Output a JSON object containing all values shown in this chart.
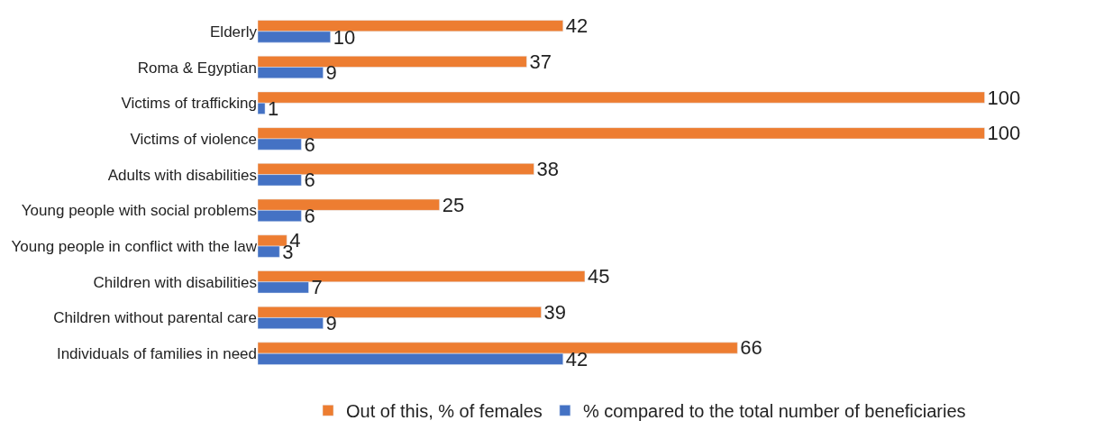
{
  "chart_data": {
    "type": "bar",
    "orientation": "horizontal",
    "categories": [
      "Elderly",
      "Roma & Egyptian",
      "Victims of trafficking",
      "Victims of violence",
      "Adults with disabilities",
      "Young people with social problems",
      "Young people in conflict with the law",
      "Children with disabilities",
      "Children without parental care",
      "Individuals of families in need"
    ],
    "series": [
      {
        "name": "Out of this, % of females",
        "color": "#ed7d31",
        "values": [
          42,
          37,
          100,
          100,
          38,
          25,
          4,
          45,
          39,
          66
        ]
      },
      {
        "name": "% compared to the total number of beneficiaries",
        "color": "#4472c4",
        "values": [
          10,
          9,
          1,
          6,
          6,
          6,
          3,
          7,
          9,
          42
        ]
      }
    ],
    "data_labels": true,
    "legend": "bottom"
  }
}
